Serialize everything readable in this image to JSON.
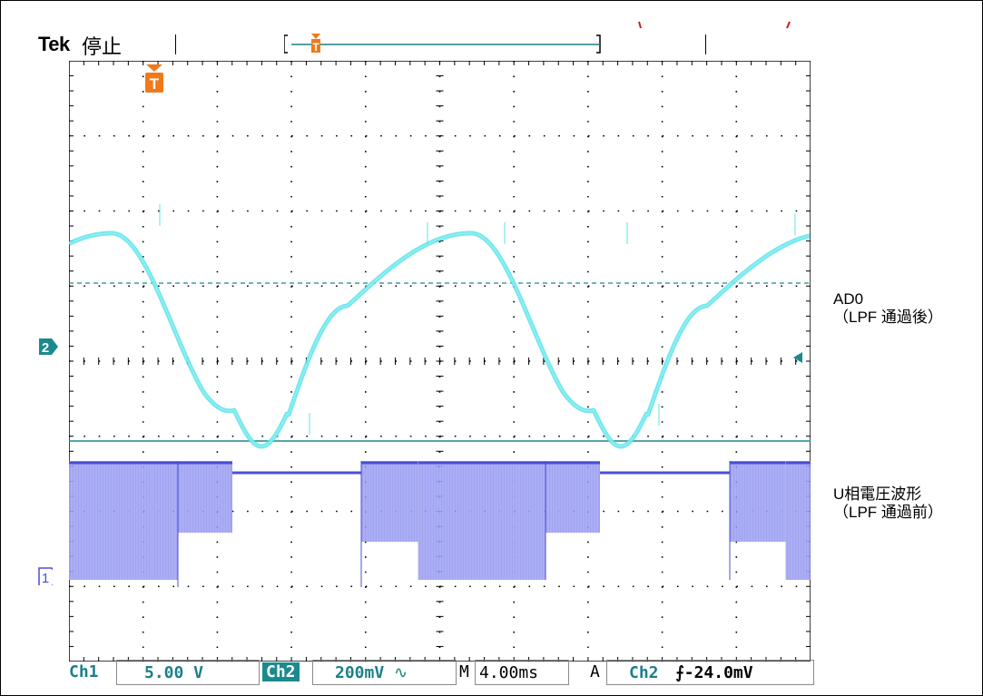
{
  "header": {
    "brand": "Tek",
    "status": "停止"
  },
  "markers": {
    "trigger_letter": "T",
    "ch1": "1",
    "ch2": "2"
  },
  "annotations": {
    "ad0_line1": "AD0",
    "ad0_line2": "（LPF 通過後）",
    "u_line1": "U相電圧波形",
    "u_line2": "（LPF 通過前）"
  },
  "bottom": {
    "ch1_label": "Ch1",
    "ch1_scale": "5.00 V",
    "ch2_label": "Ch2",
    "ch2_scale": "200mV",
    "ch2_coupling_symbol": "∿",
    "timebase_label": "M",
    "timebase": "4.00ms",
    "trigger_mode": "A",
    "trigger_source": "Ch2",
    "trigger_slope": "⨍",
    "trigger_level": "-24.0mV"
  },
  "colors": {
    "ch1_trace": "#8f93ee",
    "ch1_trace_dark": "#4b4fd6",
    "ch2_trace": "#5de3ea",
    "ch2_marker": "#1b8a8f",
    "trigger": "#f07a1a",
    "grid_dots": "#000000"
  }
}
